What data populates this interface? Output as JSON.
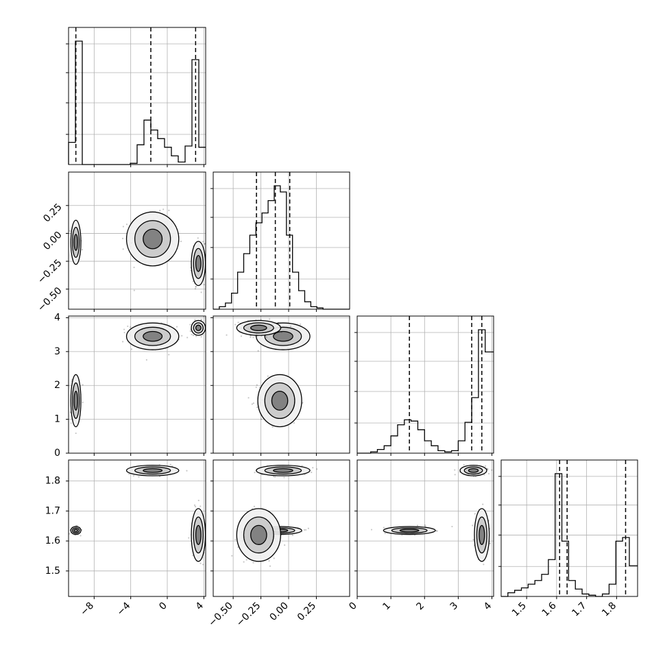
{
  "chart_data": {
    "type": "corner",
    "grid": true,
    "colors": {
      "line": "#000000",
      "grid": "#b0b0b0",
      "points": "#000000"
    },
    "parameters": [
      {
        "range": [
          -10.8,
          4.2
        ],
        "quantiles": [
          -10.0,
          -1.8,
          3.1
        ],
        "hist_bins": [
          -10.8,
          -10.05,
          -9.3,
          -8.55,
          -7.8,
          -7.05,
          -6.3,
          -5.55,
          -4.8,
          -4.05,
          -3.3,
          -2.55,
          -1.8,
          -1.05,
          -0.3,
          0.45,
          1.2,
          1.95,
          2.7,
          3.45,
          4.2
        ],
        "hist_counts": [
          0.18,
          1.0,
          0,
          0,
          0,
          0,
          0,
          0,
          0,
          0.01,
          0.16,
          0.36,
          0.28,
          0.21,
          0.14,
          0.07,
          0.02,
          0.15,
          0.85,
          0.14
        ]
      },
      {
        "range": [
          -0.68,
          0.55
        ],
        "quantiles": [
          -0.29,
          -0.12,
          0.01
        ],
        "hist_bins": [
          -0.68,
          -0.625,
          -0.57,
          -0.515,
          -0.46,
          -0.405,
          -0.35,
          -0.295,
          -0.24,
          -0.185,
          -0.13,
          -0.075,
          -0.02,
          0.035,
          0.09,
          0.145,
          0.2,
          0.255,
          0.31,
          0.365,
          0.42,
          0.475,
          0.55
        ],
        "hist_counts": [
          0,
          0.02,
          0.05,
          0.13,
          0.3,
          0.45,
          0.6,
          0.7,
          0.78,
          0.88,
          1.0,
          0.95,
          0.6,
          0.3,
          0.15,
          0.06,
          0.02,
          0.01,
          0,
          0,
          0,
          0
        ]
      },
      {
        "range": [
          0,
          4.05
        ],
        "quantiles": [
          1.55,
          3.4,
          3.7
        ],
        "hist_bins": [
          0,
          0.2,
          0.4,
          0.6,
          0.8,
          1.0,
          1.2,
          1.4,
          1.6,
          1.8,
          2.0,
          2.2,
          2.4,
          2.6,
          2.8,
          3.0,
          3.2,
          3.4,
          3.6,
          3.8,
          4.05
        ],
        "hist_counts": [
          0,
          0,
          0.01,
          0.03,
          0.06,
          0.14,
          0.23,
          0.27,
          0.26,
          0.19,
          0.1,
          0.06,
          0.02,
          0.01,
          0.02,
          0.1,
          0.25,
          0.45,
          1.0,
          0.82
        ]
      },
      {
        "range": [
          1.415,
          1.87
        ],
        "quantiles": [
          1.61,
          1.635,
          1.83
        ],
        "hist_bins": [
          1.415,
          1.4375,
          1.46,
          1.4825,
          1.505,
          1.5275,
          1.55,
          1.5725,
          1.595,
          1.6175,
          1.64,
          1.6625,
          1.685,
          1.7075,
          1.73,
          1.7525,
          1.775,
          1.7975,
          1.82,
          1.8425,
          1.87
        ],
        "hist_counts": [
          0,
          0.03,
          0.05,
          0.07,
          0.1,
          0.13,
          0.18,
          0.3,
          1.0,
          0.45,
          0.13,
          0.06,
          0.02,
          0.01,
          0,
          0.02,
          0.1,
          0.45,
          0.48,
          0.25
        ]
      }
    ],
    "tick_labels": [
      [
        "−8",
        "−4",
        "0",
        "4"
      ],
      [
        "−0.50",
        "−0.25",
        "0.00",
        "0.25"
      ],
      [
        "0",
        "1",
        "2",
        "3",
        "4"
      ],
      [
        "1.5",
        "1.6",
        "1.7",
        "1.8"
      ]
    ],
    "y_tick_labels_row1": [
      "−0.50",
      "−0.25",
      "0.00",
      "0.25"
    ],
    "y_tick_labels_row2": [
      "0",
      "1",
      "2",
      "3",
      "4"
    ],
    "y_tick_labels_row3": [
      "1.5",
      "1.6",
      "1.7",
      "1.8"
    ],
    "modes": [
      {
        "p0": -10.0,
        "p1": -0.08,
        "p2": 1.55,
        "p3": 1.635,
        "weight": 0.35,
        "s0": 0.25,
        "s1": 0.09,
        "s2": 0.35,
        "s3": 0.006
      },
      {
        "p0": -1.6,
        "p1": -0.05,
        "p2": 3.45,
        "p3": 1.835,
        "weight": 0.3,
        "s0": 1.3,
        "s1": 0.11,
        "s2": 0.18,
        "s3": 0.008
      },
      {
        "p0": 3.4,
        "p1": -0.27,
        "p2": 3.7,
        "p3": 1.62,
        "weight": 0.35,
        "s0": 0.35,
        "s1": 0.09,
        "s2": 0.1,
        "s3": 0.04
      }
    ]
  }
}
